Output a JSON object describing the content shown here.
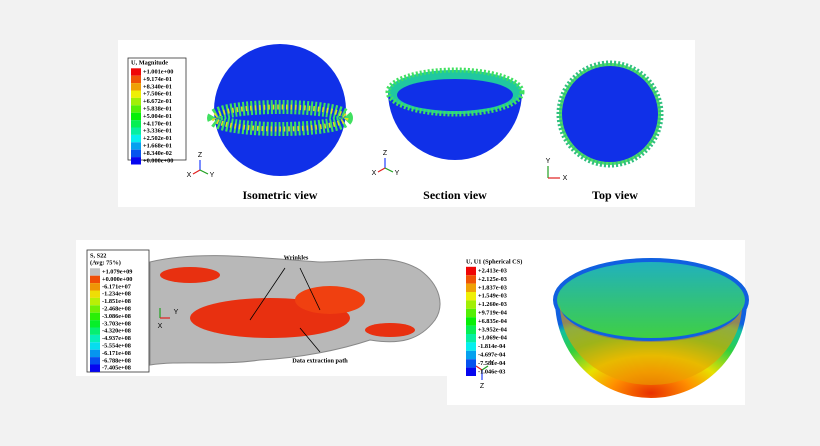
{
  "panels": [
    {
      "legend": {
        "title": [
          "U, Magnitude"
        ],
        "values": [
          "+1.001e+00",
          "+9.174e-01",
          "+8.340e-01",
          "+7.506e-01",
          "+6.672e-01",
          "+5.838e-01",
          "+5.004e-01",
          "+4.170e-01",
          "+3.336e-01",
          "+2.502e-01",
          "+1.668e-01",
          "+8.340e-02",
          "+0.000e+00"
        ]
      },
      "views": [
        "Isometric view",
        "Section view",
        "Top view"
      ],
      "triads": [
        [
          "Z",
          "X",
          "Y"
        ],
        [
          "Z",
          "X",
          "Y"
        ],
        [
          "Y",
          "X"
        ]
      ]
    },
    {
      "legend": {
        "title": [
          "S, S22",
          "(Avg: 75%)"
        ],
        "values": [
          "+1.079e+09",
          "+0.000e+00",
          "-6.171e+07",
          "-1.234e+08",
          "-1.851e+08",
          "-2.468e+08",
          "-3.086e+08",
          "-3.703e+08",
          "-4.320e+08",
          "-4.937e+08",
          "-5.554e+08",
          "-6.171e+08",
          "-6.788e+08",
          "-7.405e+08"
        ]
      },
      "annotations": [
        "Wrinkles",
        "Data extraction path"
      ],
      "triads": [
        [
          "Y",
          "X"
        ]
      ]
    },
    {
      "legend": {
        "title": [
          "U, U1 (Spherical CS)"
        ],
        "values": [
          "+2.413e-03",
          "+2.125e-03",
          "+1.837e-03",
          "+1.549e-03",
          "+1.260e-03",
          "+9.719e-04",
          "+6.835e-04",
          "+3.952e-04",
          "+1.069e-04",
          "-1.814e-04",
          "-4.697e-04",
          "-7.581e-04",
          "-1.046e-03"
        ]
      },
      "triads": [
        [
          "X",
          "Y",
          "Z"
        ]
      ]
    }
  ]
}
